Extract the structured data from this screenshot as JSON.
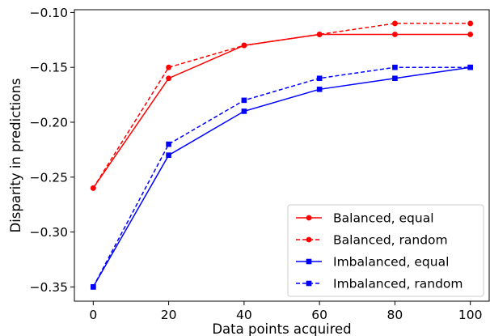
{
  "chart_data": {
    "type": "line",
    "title": "",
    "xlabel": "Data points acquired",
    "ylabel": "Disparity in predictions",
    "x": [
      0,
      20,
      40,
      60,
      80,
      100
    ],
    "xlim": [
      -5,
      105
    ],
    "ylim": [
      -0.363,
      -0.0975
    ],
    "xticks": [
      0,
      20,
      40,
      60,
      80,
      100
    ],
    "xtick_labels": [
      "0",
      "20",
      "40",
      "60",
      "80",
      "100"
    ],
    "yticks": [
      -0.35,
      -0.3,
      -0.25,
      -0.2,
      -0.15,
      -0.1
    ],
    "ytick_labels": [
      "−0.35",
      "−0.30",
      "−0.25",
      "−0.20",
      "−0.15",
      "−0.10"
    ],
    "grid": false,
    "legend_position": "lower-right",
    "series": [
      {
        "name": "Balanced, equal",
        "color": "#ff0000",
        "dash": "solid",
        "marker": "circle",
        "values": [
          -0.26,
          -0.16,
          -0.13,
          -0.12,
          -0.12,
          -0.12
        ]
      },
      {
        "name": "Balanced, random",
        "color": "#ff0000",
        "dash": "dashed",
        "marker": "circle",
        "values": [
          -0.26,
          -0.15,
          -0.13,
          -0.12,
          -0.11,
          -0.11
        ]
      },
      {
        "name": "Imbalanced, equal",
        "color": "#0000ff",
        "dash": "solid",
        "marker": "square",
        "values": [
          -0.35,
          -0.23,
          -0.19,
          -0.17,
          -0.16,
          -0.15
        ]
      },
      {
        "name": "Imbalanced, random",
        "color": "#0000ff",
        "dash": "dashed",
        "marker": "square",
        "values": [
          -0.35,
          -0.22,
          -0.18,
          -0.16,
          -0.15,
          -0.15
        ]
      }
    ]
  }
}
